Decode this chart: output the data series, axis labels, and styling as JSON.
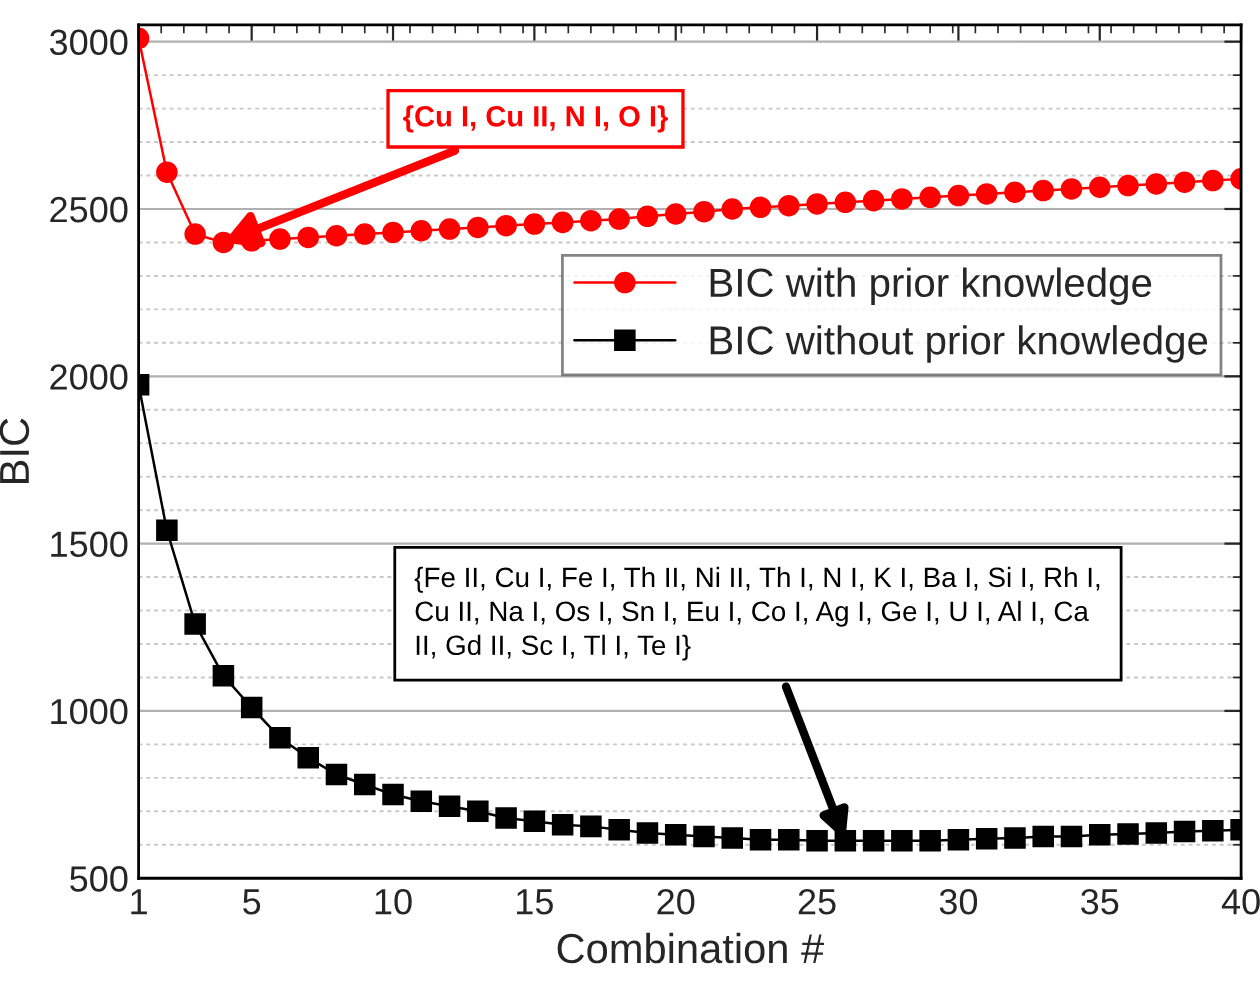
{
  "chart_data": {
    "type": "line",
    "xlabel": "Combination #",
    "ylabel": "BIC",
    "x": [
      1,
      2,
      3,
      4,
      5,
      6,
      7,
      8,
      9,
      10,
      11,
      12,
      13,
      14,
      15,
      16,
      17,
      18,
      19,
      20,
      21,
      22,
      23,
      24,
      25,
      26,
      27,
      28,
      29,
      30,
      31,
      32,
      33,
      34,
      35,
      36,
      37,
      38,
      39,
      40
    ],
    "series": [
      {
        "name": "BIC with prior knowledge",
        "color": "#ff0000",
        "marker": "circle",
        "values": [
          3010,
          2610,
          2425,
          2400,
          2405,
          2410,
          2415,
          2420,
          2425,
          2430,
          2435,
          2440,
          2445,
          2450,
          2455,
          2460,
          2465,
          2470,
          2478,
          2485,
          2492,
          2500,
          2505,
          2510,
          2515,
          2520,
          2525,
          2530,
          2535,
          2540,
          2545,
          2550,
          2555,
          2560,
          2565,
          2570,
          2575,
          2580,
          2585,
          2590
        ]
      },
      {
        "name": "BIC without prior knowledge",
        "color": "#000000",
        "marker": "square",
        "values": [
          1975,
          1540,
          1260,
          1105,
          1010,
          920,
          860,
          810,
          780,
          750,
          730,
          715,
          700,
          680,
          670,
          660,
          655,
          645,
          635,
          630,
          625,
          620,
          615,
          615,
          612,
          612,
          612,
          612,
          612,
          615,
          618,
          620,
          625,
          625,
          630,
          632,
          635,
          640,
          642,
          645
        ]
      }
    ],
    "xlim": [
      1,
      40
    ],
    "xticks": [
      1,
      5,
      10,
      15,
      20,
      25,
      30,
      35,
      40
    ],
    "ylim": [
      500,
      3050
    ],
    "yticks": [
      500,
      1000,
      1500,
      2000,
      2500,
      3000
    ],
    "grid": "y",
    "legend": "right",
    "line_style": "solid",
    "annotations": [
      {
        "text": "{Cu I, Cu II, N I, O I}",
        "x": 4,
        "y": 2400
      },
      {
        "text": "{Fe II, Cu I, Fe I, Th II, Ni II, Th I, N I, K I, Ba I, Si I, Rh I,\nCu II, Na I, Os I, Sn I, Eu I, Co I, Ag I, Ge I, U I, Al I, Ca\nII, Gd II, Sc I, Tl I, Te I}",
        "x": 26,
        "y": 612
      }
    ]
  }
}
